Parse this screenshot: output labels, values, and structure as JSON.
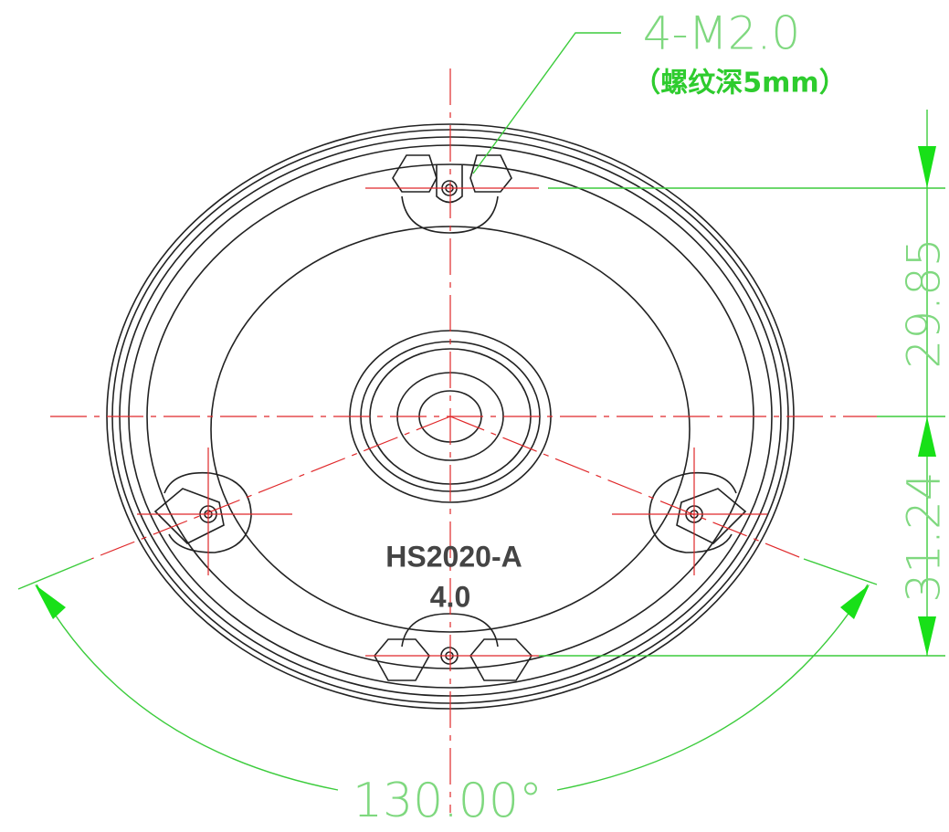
{
  "callout": {
    "thread": "4-M2.0",
    "depth_note": "（螺纹深5mm）"
  },
  "dimensions": {
    "upper": "29.85",
    "lower": "31.24",
    "angle": "130.00°"
  },
  "part_label": {
    "model": "HS2020-A",
    "version": "4.0"
  }
}
